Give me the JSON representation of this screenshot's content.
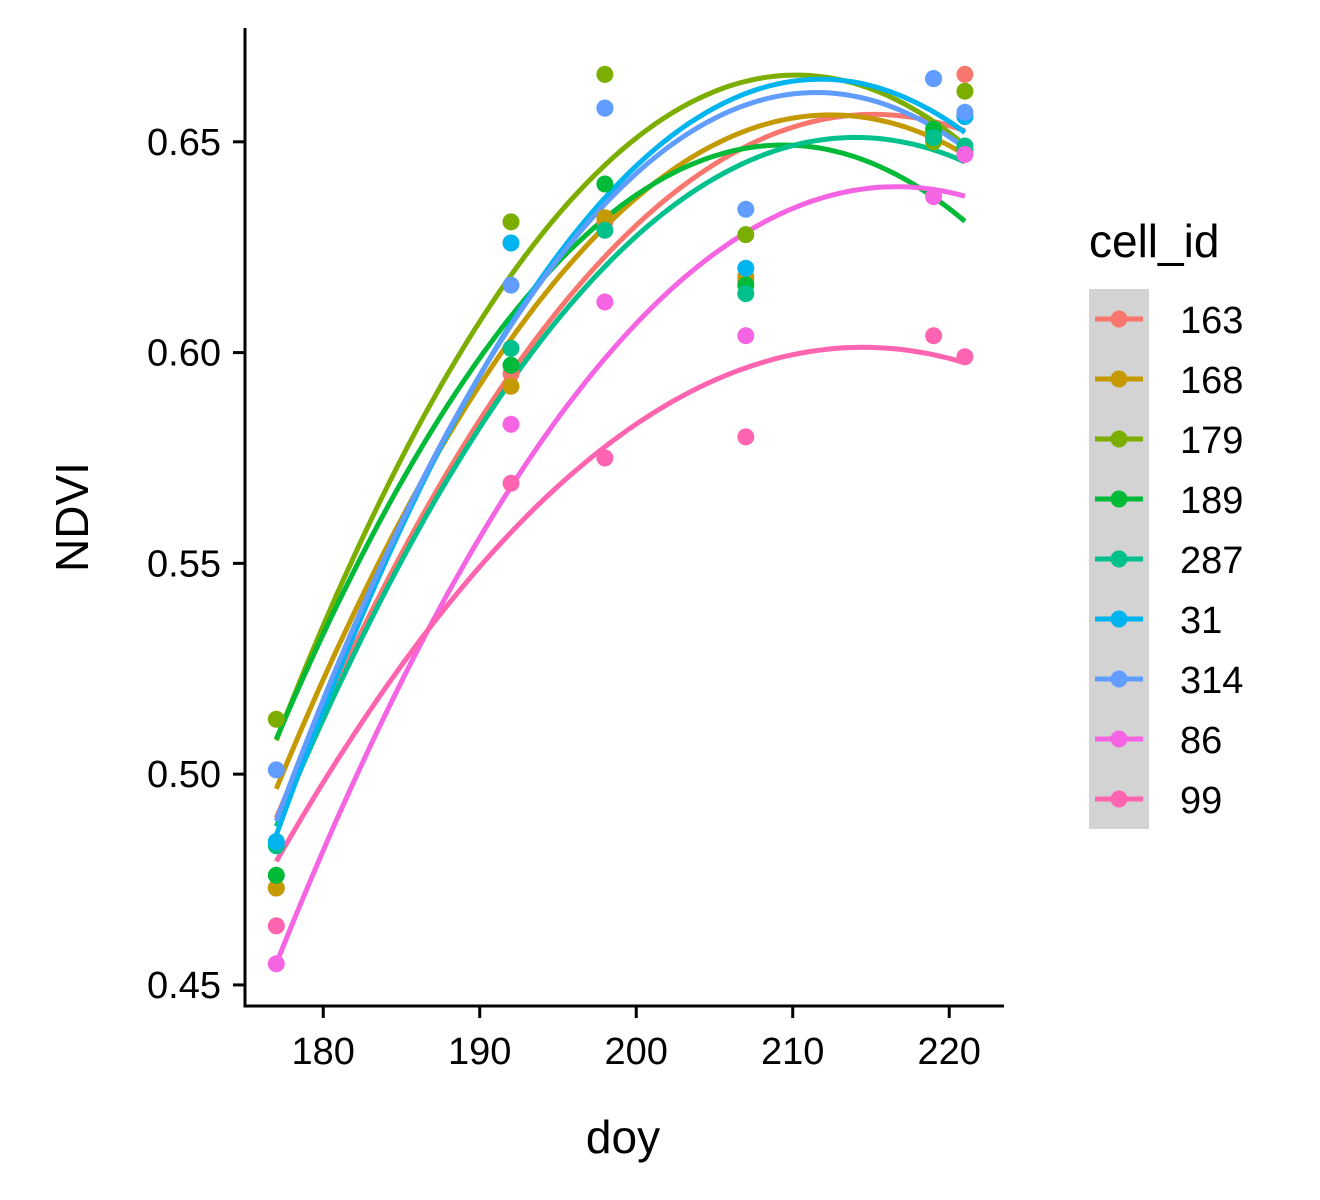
{
  "chart_data": {
    "type": "scatter",
    "xlabel": "doy",
    "ylabel": "NDVI",
    "xlim": [
      175,
      223.5
    ],
    "ylim": [
      0.445,
      0.677
    ],
    "x_ticks": [
      180,
      190,
      200,
      210,
      220
    ],
    "y_ticks": [
      0.45,
      0.5,
      0.55,
      0.6,
      0.65
    ],
    "x_tick_labels": [
      "180",
      "190",
      "200",
      "210",
      "220"
    ],
    "y_tick_labels": [
      "0.45",
      "0.50",
      "0.55",
      "0.60",
      "0.65"
    ],
    "grid": false,
    "legend": {
      "title": "cell_id",
      "position": "right"
    },
    "x_fit_range": [
      177,
      221
    ],
    "series": [
      {
        "name": "163",
        "color": "#F8766D",
        "points": [
          [
            177,
            0.473
          ],
          [
            192,
            0.595
          ],
          [
            198,
            0.631
          ],
          [
            207,
            0.617
          ],
          [
            219,
            0.652
          ],
          [
            221,
            0.666
          ]
        ],
        "fit": [
          -0.00011466,
          0.049338,
          -4.651
        ]
      },
      {
        "name": "168",
        "color": "#C49A00",
        "points": [
          [
            177,
            0.473
          ],
          [
            192,
            0.592
          ],
          [
            198,
            0.632
          ],
          [
            207,
            0.618
          ],
          [
            219,
            0.651
          ],
          [
            221,
            0.656
          ]
        ],
        "fit": [
          -0.00012731,
          0.05409,
          -5.0889
        ]
      },
      {
        "name": "179",
        "color": "#7CAE00",
        "points": [
          [
            177,
            0.513
          ],
          [
            192,
            0.631
          ],
          [
            198,
            0.666
          ],
          [
            207,
            0.628
          ],
          [
            219,
            0.65
          ],
          [
            221,
            0.662
          ]
        ],
        "fit": [
          -0.00014298,
          0.060115,
          -5.6529
        ]
      },
      {
        "name": "189",
        "color": "#00BA38",
        "points": [
          [
            177,
            0.476
          ],
          [
            192,
            0.597
          ],
          [
            198,
            0.64
          ],
          [
            207,
            0.616
          ],
          [
            219,
            0.653
          ],
          [
            221,
            0.648
          ]
        ],
        "fit": [
          -0.0001343,
          0.056243,
          -5.2392
        ]
      },
      {
        "name": "287",
        "color": "#00C08B",
        "points": [
          [
            177,
            0.483
          ],
          [
            192,
            0.601
          ],
          [
            198,
            0.629
          ],
          [
            207,
            0.614
          ],
          [
            219,
            0.651
          ],
          [
            221,
            0.649
          ]
        ],
        "fit": [
          -0.00011926,
          0.051048,
          -4.8116
        ]
      },
      {
        "name": "31",
        "color": "#00B4F0",
        "points": [
          [
            177,
            0.484
          ],
          [
            192,
            0.626
          ],
          [
            198,
            0.658
          ],
          [
            207,
            0.62
          ],
          [
            219,
            0.665
          ],
          [
            221,
            0.656
          ]
        ],
        "fit": [
          -0.00014828,
          0.062803,
          -5.9851
        ]
      },
      {
        "name": "314",
        "color": "#619CFF",
        "points": [
          [
            177,
            0.501
          ],
          [
            192,
            0.616
          ],
          [
            198,
            0.658
          ],
          [
            207,
            0.634
          ],
          [
            219,
            0.665
          ],
          [
            221,
            0.657
          ]
        ],
        "fit": [
          -0.00014522,
          0.061427,
          -5.8341
        ]
      },
      {
        "name": "86",
        "color": "#F564E3",
        "points": [
          [
            177,
            0.455
          ],
          [
            192,
            0.583
          ],
          [
            198,
            0.612
          ],
          [
            207,
            0.604
          ],
          [
            219,
            0.637
          ],
          [
            221,
            0.647
          ]
        ],
        "fit": [
          -0.00011736,
          0.050847,
          -4.8681
        ]
      },
      {
        "name": "99",
        "color": "#FF64B0",
        "points": [
          [
            177,
            0.464
          ],
          [
            192,
            0.569
          ],
          [
            198,
            0.575
          ],
          [
            207,
            0.58
          ],
          [
            219,
            0.604
          ],
          [
            221,
            0.599
          ]
        ],
        "fit": [
          -8.6779e-05,
          0.037226,
          -3.391
        ]
      }
    ]
  }
}
